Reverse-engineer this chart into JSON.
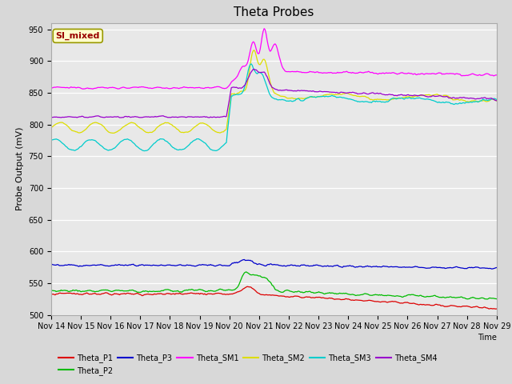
{
  "title": "Theta Probes",
  "ylabel": "Probe Output (mV)",
  "xlabel": "Time",
  "ylim": [
    500,
    960
  ],
  "yticks": [
    500,
    550,
    600,
    650,
    700,
    750,
    800,
    850,
    900,
    950
  ],
  "xtick_labels": [
    "Nov 14",
    "Nov 15",
    "Nov 16",
    "Nov 17",
    "Nov 18",
    "Nov 19",
    "Nov 20",
    "Nov 21",
    "Nov 22",
    "Nov 23",
    "Nov 24",
    "Nov 25",
    "Nov 26",
    "Nov 27",
    "Nov 28",
    "Nov 29"
  ],
  "fig_bg_color": "#d8d8d8",
  "plot_bg_color": "#e8e8e8",
  "grid_color": "#ffffff",
  "series_colors": {
    "Theta_P1": "#dd0000",
    "Theta_P2": "#00bb00",
    "Theta_P3": "#0000cc",
    "Theta_SM1": "#ff00ff",
    "Theta_SM2": "#dddd00",
    "Theta_SM3": "#00cccc",
    "Theta_SM4": "#9900cc"
  },
  "annotation_text": "SI_mixed",
  "annotation_color": "#990000",
  "annotation_bg": "#ffffcc",
  "annotation_border": "#999900"
}
